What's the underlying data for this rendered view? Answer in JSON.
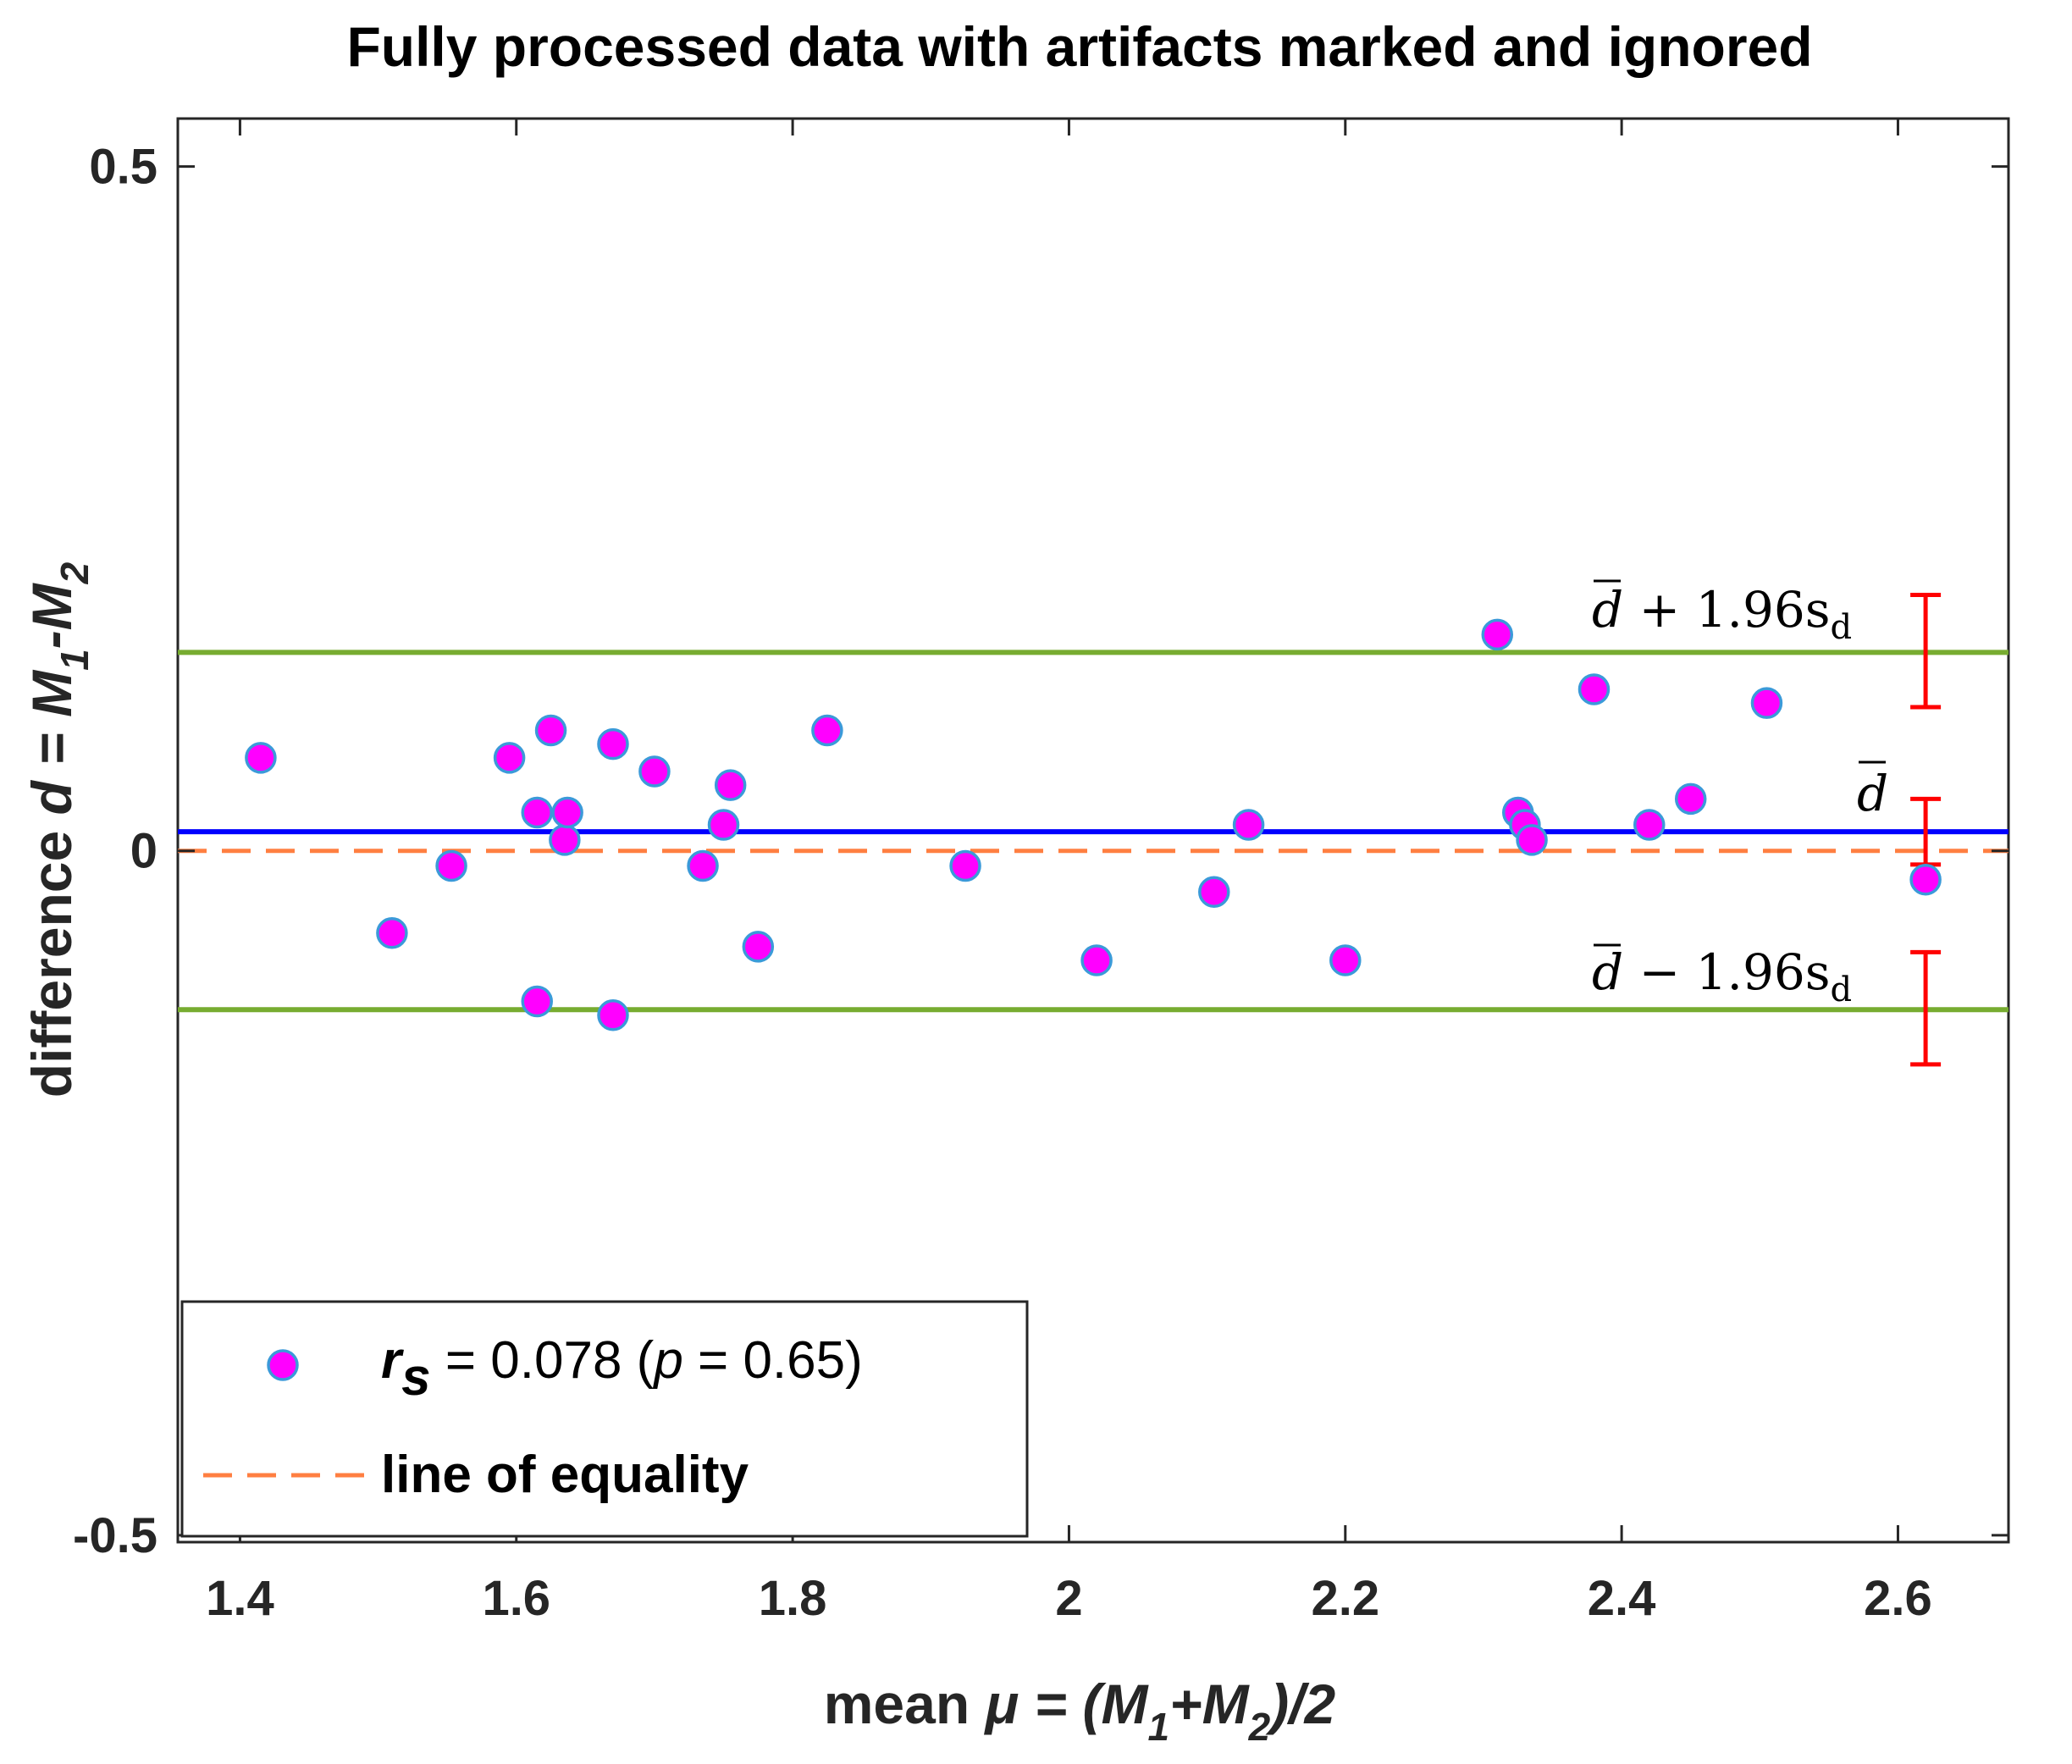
{
  "chart_data": {
    "type": "scatter",
    "title": "Fully processed data with artifacts marked and ignored",
    "xlabel": {
      "pre": "mean ",
      "mu": "μ",
      "eq": " = (M",
      "s1": "1",
      "plus": "+M",
      "s2": "2",
      "post": ")/2"
    },
    "ylabel": {
      "pre": "difference ",
      "d": "d",
      "eq": " = M",
      "s1": "1",
      "minus": "-M",
      "s2": "2"
    },
    "xlim": [
      1.355,
      2.68
    ],
    "ylim": [
      -0.505,
      0.535
    ],
    "xticks": [
      1.4,
      1.6,
      1.8,
      2.0,
      2.2,
      2.4,
      2.6
    ],
    "xtick_labels": [
      "1.4",
      "1.6",
      "1.8",
      "2",
      "2.2",
      "2.4",
      "2.6"
    ],
    "yticks": [
      -0.5,
      0,
      0.5
    ],
    "ytick_labels": [
      "-0.5",
      "0",
      "0.5"
    ],
    "series": [
      {
        "name": "r_s = 0.078 (p = 0.65)",
        "marker_color": "#ff00ff",
        "edge_color": "#3b9ad9",
        "points": [
          {
            "x": 1.415,
            "y": 0.068
          },
          {
            "x": 1.51,
            "y": -0.06
          },
          {
            "x": 1.553,
            "y": -0.011
          },
          {
            "x": 1.595,
            "y": 0.068
          },
          {
            "x": 1.615,
            "y": 0.028
          },
          {
            "x": 1.615,
            "y": -0.11
          },
          {
            "x": 1.625,
            "y": 0.088
          },
          {
            "x": 1.635,
            "y": 0.008
          },
          {
            "x": 1.637,
            "y": 0.028
          },
          {
            "x": 1.67,
            "y": 0.078
          },
          {
            "x": 1.67,
            "y": -0.12
          },
          {
            "x": 1.7,
            "y": 0.058
          },
          {
            "x": 1.735,
            "y": -0.011
          },
          {
            "x": 1.75,
            "y": 0.019
          },
          {
            "x": 1.755,
            "y": 0.048
          },
          {
            "x": 1.775,
            "y": -0.07
          },
          {
            "x": 1.825,
            "y": 0.088
          },
          {
            "x": 1.925,
            "y": -0.011
          },
          {
            "x": 2.02,
            "y": -0.08
          },
          {
            "x": 2.105,
            "y": -0.03
          },
          {
            "x": 2.13,
            "y": 0.019
          },
          {
            "x": 2.2,
            "y": -0.08
          },
          {
            "x": 2.31,
            "y": 0.158
          },
          {
            "x": 2.325,
            "y": 0.028
          },
          {
            "x": 2.33,
            "y": 0.019
          },
          {
            "x": 2.335,
            "y": 0.008
          },
          {
            "x": 2.38,
            "y": 0.118
          },
          {
            "x": 2.42,
            "y": 0.019
          },
          {
            "x": 2.45,
            "y": 0.038
          },
          {
            "x": 2.505,
            "y": 0.108
          },
          {
            "x": 2.62,
            "y": -0.021
          }
        ]
      }
    ],
    "lines": {
      "mean_d": {
        "y": 0.014,
        "color": "#0000ff"
      },
      "upper_loa": {
        "y": 0.145,
        "color": "#77ac30"
      },
      "lower_loa": {
        "y": -0.116,
        "color": "#77ac30"
      },
      "equality": {
        "y": 0,
        "color": "#ff7f41",
        "label": "line of equality"
      }
    },
    "error_bars": [
      {
        "x": 2.62,
        "low": 0.105,
        "high": 0.187
      },
      {
        "x": 2.62,
        "low": -0.01,
        "high": 0.038
      },
      {
        "x": 2.62,
        "low": -0.156,
        "high": -0.074
      }
    ],
    "error_bar_color": "#ff0000",
    "annotations": {
      "upper": {
        "d": "d",
        "rest": " + 1.96s",
        "sub": "d"
      },
      "mean": {
        "d": "d"
      },
      "lower": {
        "d": "d",
        "rest": " − 1.96s",
        "sub": "d"
      }
    },
    "legend": {
      "position": "bottom-left",
      "scatter": {
        "r": "r",
        "r_sub": "s",
        "mid": " = 0.078 (",
        "p": "p",
        "end": " = 0.65)"
      },
      "equality": "line of equality"
    }
  }
}
